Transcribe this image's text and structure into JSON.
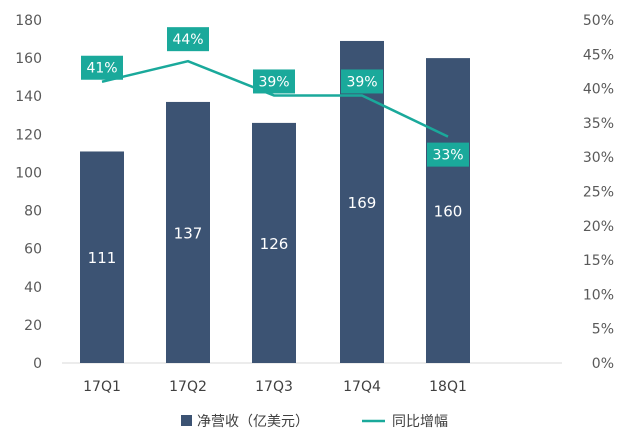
{
  "chart_data": {
    "type": "bar",
    "categories": [
      "17Q1",
      "17Q2",
      "17Q3",
      "17Q4",
      "18Q1"
    ],
    "series": [
      {
        "name": "净营收（亿美元）",
        "type": "bar",
        "axis": "left",
        "values": [
          111,
          137,
          126,
          169,
          160
        ],
        "labels": [
          "111",
          "137",
          "126",
          "169",
          "160"
        ]
      },
      {
        "name": "同比增幅",
        "type": "line",
        "axis": "right",
        "values": [
          0.41,
          0.44,
          0.39,
          0.39,
          0.33
        ],
        "labels": [
          "41%",
          "44%",
          "39%",
          "39%",
          "33%"
        ]
      }
    ],
    "y_left": {
      "range": [
        0,
        180
      ],
      "ticks": [
        "0",
        "20",
        "40",
        "60",
        "80",
        "100",
        "120",
        "140",
        "160",
        "180"
      ]
    },
    "y_right": {
      "range": [
        0,
        0.5
      ],
      "ticks": [
        "0%",
        "5%",
        "10%",
        "15%",
        "20%",
        "25%",
        "30%",
        "35%",
        "40%",
        "45%",
        "50%"
      ]
    },
    "grid": false,
    "legend": "bottom",
    "colors": {
      "bar": "#3c5373",
      "line": "#1aa99b",
      "label_box": "#1aa99b"
    }
  }
}
